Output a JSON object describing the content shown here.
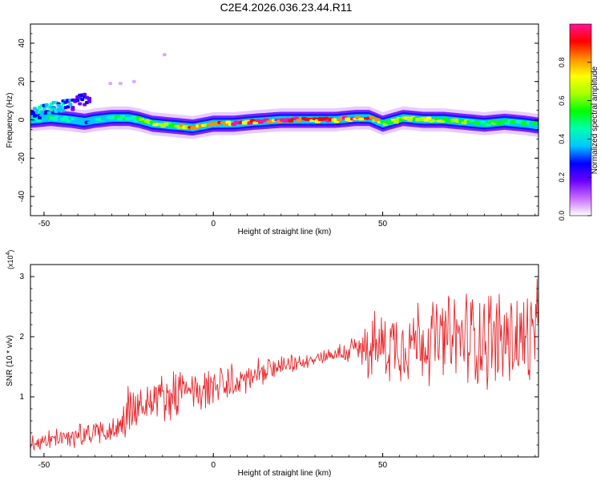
{
  "title": "C2E4.2026.036.23.44.R11",
  "colors": {
    "snr_line": "#e8262b",
    "axis": "#000000",
    "background": "#ffffff"
  },
  "chart_data": [
    {
      "type": "heatmap",
      "title": "C2E4.2026.036.23.44.R11",
      "xlabel": "Height of straight line (km)",
      "ylabel": "Frequency (Hz)",
      "xlim": [
        -54,
        96
      ],
      "ylim": [
        -50,
        50
      ],
      "xticks": [
        -50,
        0,
        50
      ],
      "yticks": [
        -40,
        -20,
        0,
        20,
        40
      ],
      "colorbar": {
        "label": "Normalized spectral amplitude",
        "range": [
          0,
          1
        ],
        "ticks": [
          "0.0",
          "0.2",
          "0.4",
          "0.6",
          "0.8"
        ],
        "colormap": [
          "#ffffff",
          "#c86bff",
          "#6a00ff",
          "#0000ff",
          "#00c8ff",
          "#00ffb0",
          "#00ff00",
          "#a8ff00",
          "#ffff00",
          "#ff9000",
          "#ff0000",
          "#ff1493"
        ]
      },
      "ridge": {
        "x": [
          -54,
          -48,
          -42,
          -38,
          -35,
          -30,
          -25,
          -22,
          -18,
          -12,
          -6,
          0,
          6,
          12,
          20,
          28,
          36,
          42,
          46,
          50,
          56,
          62,
          68,
          74,
          80,
          86,
          92,
          96
        ],
        "y": [
          0,
          1,
          0,
          -1,
          0,
          1,
          1,
          0,
          -2,
          -3,
          -4,
          -2,
          -2,
          -1,
          0,
          0,
          0,
          1,
          1,
          -2,
          1,
          0,
          0,
          -1,
          -2,
          -1,
          -2,
          -3
        ],
        "amp": [
          0.45,
          0.5,
          0.45,
          0.35,
          0.45,
          0.5,
          0.45,
          0.6,
          0.7,
          0.75,
          0.85,
          0.9,
          0.95,
          0.95,
          1.0,
          0.95,
          0.95,
          0.9,
          0.85,
          0.75,
          0.7,
          0.7,
          0.65,
          0.6,
          0.6,
          0.55,
          0.5,
          0.5
        ]
      },
      "branch": {
        "x": [
          -54,
          -50,
          -46,
          -42,
          -40,
          -37
        ],
        "y": [
          3,
          5,
          7,
          8,
          10,
          12
        ],
        "amp": [
          0.35,
          0.4,
          0.4,
          0.3,
          0.25,
          0.2
        ]
      }
    },
    {
      "type": "line",
      "xlabel": "Height of straight line (km)",
      "ylabel": "SNR (10 * v/v)",
      "y_multiplier": "(x10",
      "y_multiplier_exp": "4",
      "y_multiplier_close": ")",
      "xlim": [
        -54,
        96
      ],
      "ylim": [
        0,
        3.2
      ],
      "xticks": [
        -50,
        0,
        50
      ],
      "yticks": [
        1,
        2,
        3
      ],
      "series": [
        {
          "x": [
            -54,
            -50,
            -45,
            -40,
            -35,
            -30,
            -27,
            -25,
            -22,
            -18,
            -15,
            -10,
            -5,
            0,
            5,
            10,
            15,
            20,
            25,
            30,
            35,
            40,
            45,
            50,
            55,
            60,
            65,
            70,
            75,
            80,
            85,
            90,
            96
          ],
          "mean": [
            0.25,
            0.25,
            0.3,
            0.35,
            0.4,
            0.45,
            0.55,
            0.75,
            0.8,
            0.95,
            1.0,
            1.05,
            1.1,
            1.15,
            1.2,
            1.3,
            1.4,
            1.5,
            1.55,
            1.65,
            1.7,
            1.75,
            1.8,
            1.85,
            1.9,
            1.95,
            1.95,
            1.95,
            2.0,
            2.0,
            1.95,
            1.95,
            1.9
          ],
          "spread": [
            0.15,
            0.15,
            0.15,
            0.2,
            0.2,
            0.2,
            0.25,
            0.5,
            0.4,
            0.4,
            0.35,
            0.35,
            0.3,
            0.35,
            0.3,
            0.25,
            0.2,
            0.15,
            0.12,
            0.1,
            0.12,
            0.2,
            0.45,
            0.55,
            0.6,
            0.65,
            0.65,
            0.7,
            0.75,
            0.8,
            0.8,
            0.85,
            0.85
          ]
        }
      ]
    }
  ]
}
